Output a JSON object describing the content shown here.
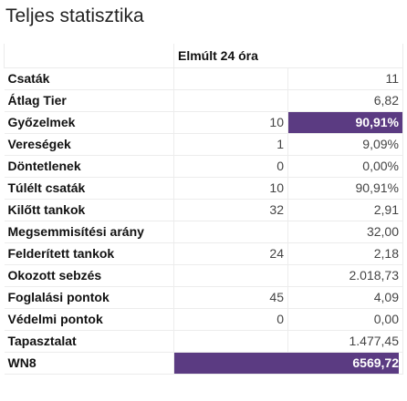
{
  "header": {
    "title": "Teljes statisztika"
  },
  "table": {
    "column_header": "Elmúlt 24 óra",
    "rows": [
      [
        "Csaták",
        null,
        "11"
      ],
      [
        "Átlag Tier",
        null,
        "6,82"
      ],
      [
        "Győzelmek",
        "10",
        "90,91%"
      ],
      [
        "Vereségek",
        "1",
        "9,09%"
      ],
      [
        "Döntetlenek",
        "0",
        "0,00%"
      ],
      [
        "Túlélt csaták",
        "10",
        "90,91%"
      ],
      [
        "Kilőtt tankok",
        "32",
        "2,91"
      ],
      [
        "Megsemmisítési arány",
        null,
        "32,00"
      ],
      [
        "Felderített tankok",
        "24",
        "2,18"
      ],
      [
        "Okozott sebzés",
        null,
        "2.018,73"
      ],
      [
        "Foglalási pontok",
        "45",
        "4,09"
      ],
      [
        "Védelmi pontok",
        "0",
        "0,00"
      ],
      [
        "Tapasztalat",
        null,
        "1.477,45"
      ],
      [
        "WN8",
        null,
        "6569,72"
      ]
    ]
  }
}
